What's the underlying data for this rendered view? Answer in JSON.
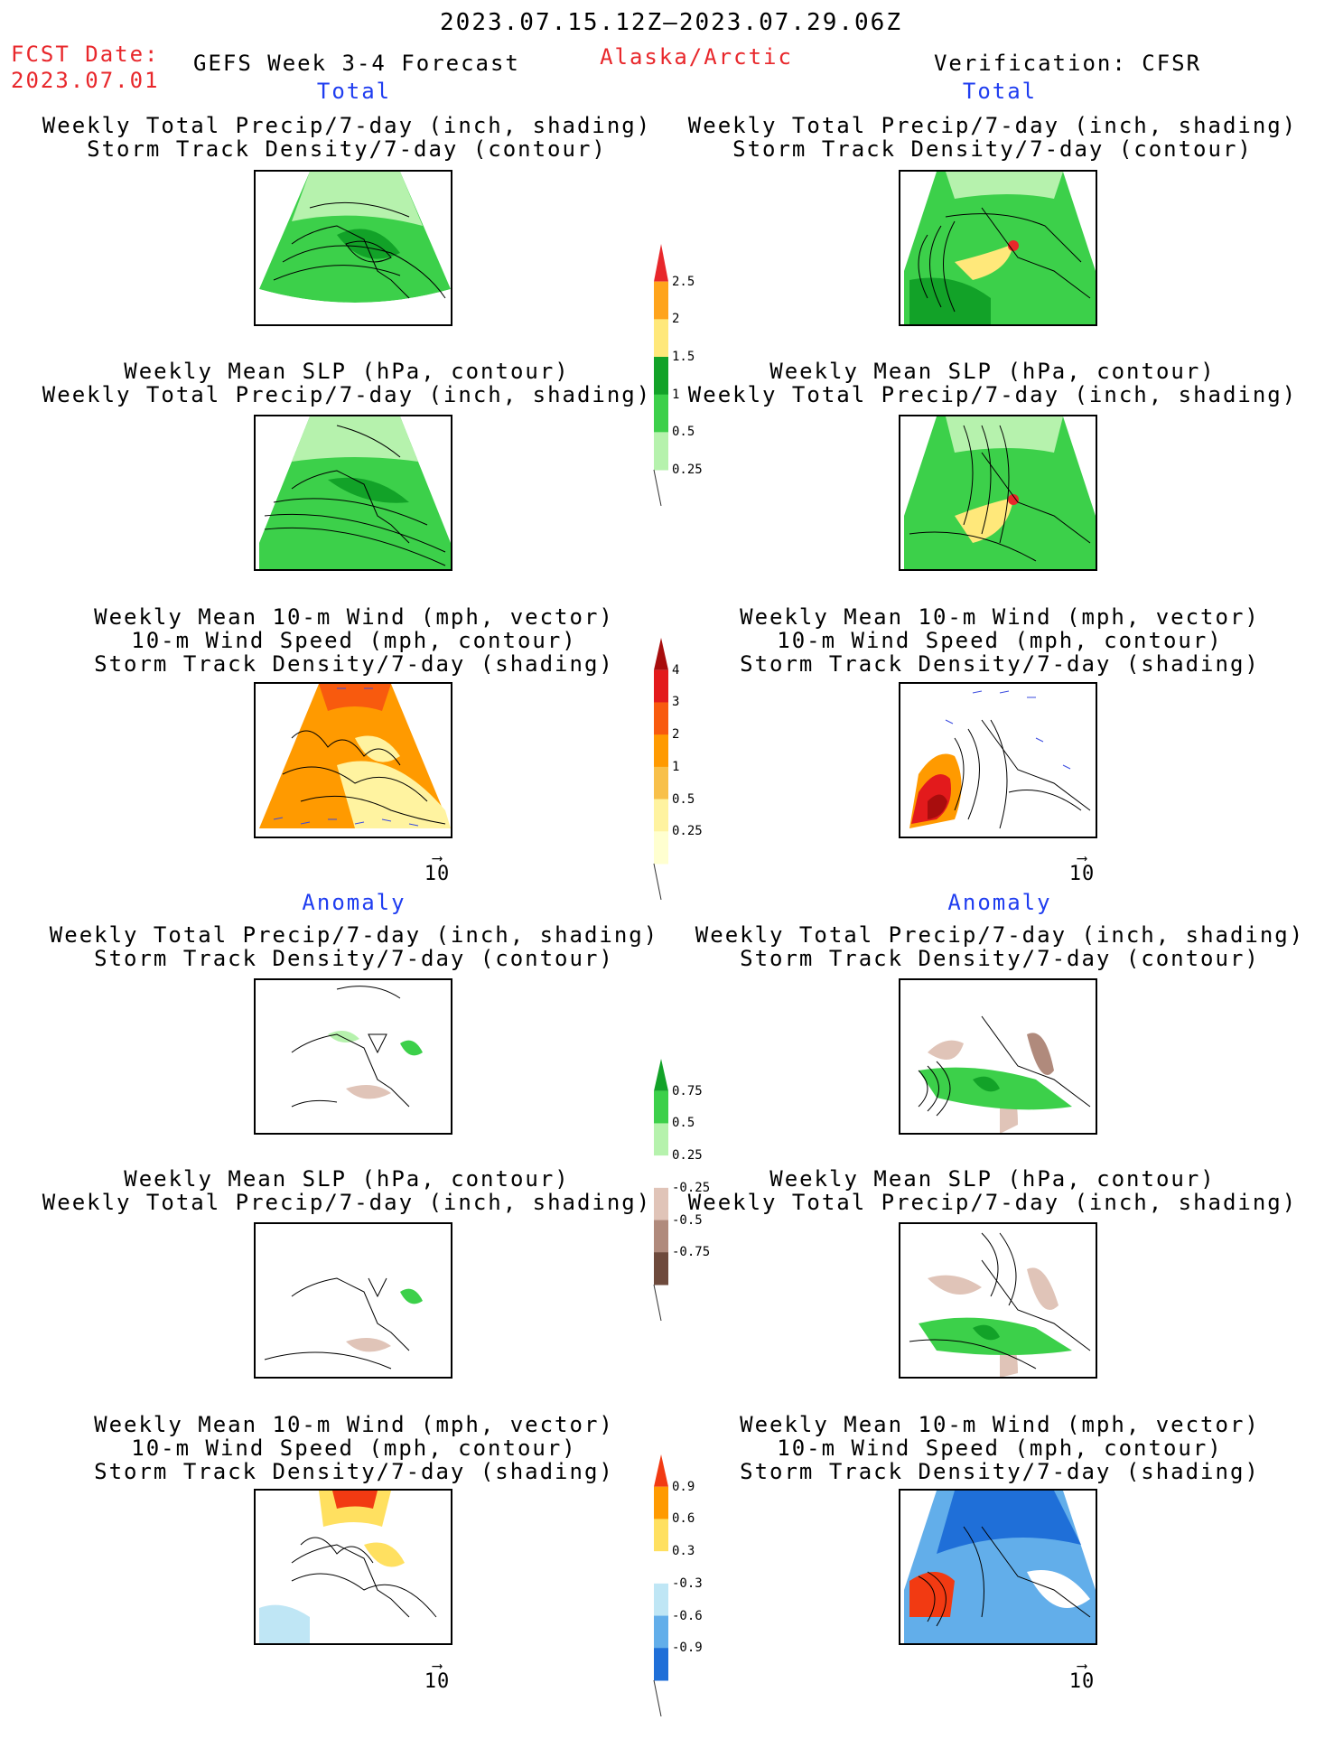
{
  "header": {
    "date_range": "2023.07.15.12Z–2023.07.29.06Z",
    "fcst_label": "FCST Date:",
    "fcst_date": "2023.07.01",
    "model": "GEFS Week 3-4 Forecast",
    "region": "Alaska/Arctic",
    "verification": "Verification: CFSR"
  },
  "sections": {
    "total_left": "Total",
    "total_right": "Total",
    "anomaly_left": "Anomaly",
    "anomaly_right": "Anomaly"
  },
  "titles": {
    "precip_track": [
      "Weekly Total Precip/7-day (inch, shading)",
      "Storm Track Density/7-day (contour)"
    ],
    "slp_precip": [
      "Weekly Mean SLP (hPa, contour)",
      "Weekly Total Precip/7-day (inch, shading)"
    ],
    "wind": [
      "Weekly Mean 10-m Wind (mph, vector)",
      "10-m Wind Speed (mph, contour)",
      "Storm Track Density/7-day (shading)"
    ]
  },
  "vector_reference": "10",
  "colorbars": {
    "precip_total": {
      "labels": [
        "2.5",
        "2",
        "1.5",
        "1",
        "0.5",
        "0.25"
      ],
      "colors": [
        "#e8272b",
        "#ffa41c",
        "#ffe87a",
        "#12a228",
        "#3cd04a",
        "#b6f2ad"
      ]
    },
    "track_total": {
      "labels": [
        "4",
        "3",
        "2",
        "1",
        "0.5",
        "0.25"
      ],
      "colors": [
        "#a80d0d",
        "#e31a1c",
        "#f85a0e",
        "#ff9a00",
        "#f8c04a",
        "#fff3a0",
        "#ffffd0"
      ]
    },
    "precip_anom": {
      "labels": [
        "0.75",
        "0.5",
        "0.25",
        "-0.25",
        "-0.5",
        "-0.75"
      ],
      "colors": [
        "#12a228",
        "#3cd04a",
        "#b6f2ad",
        "#ffffff",
        "#e0c4b8",
        "#b08a7c",
        "#6e4a3c"
      ]
    },
    "wind_anom": {
      "labels": [
        "0.9",
        "0.6",
        "0.3",
        "-0.3",
        "-0.6",
        "-0.9"
      ],
      "colors": [
        "#f23a12",
        "#ff9a00",
        "#ffe060",
        "#ffffff",
        "#bfe6f5",
        "#62aeea",
        "#1f6fd8"
      ]
    }
  }
}
